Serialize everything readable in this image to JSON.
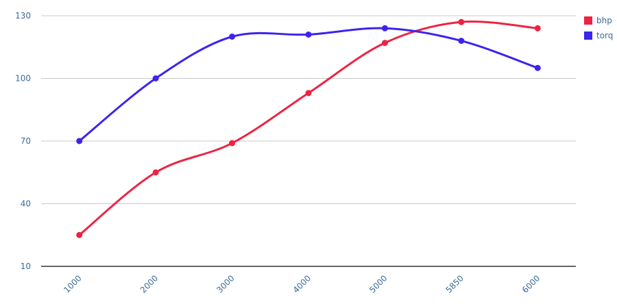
{
  "chart_data": {
    "type": "line",
    "categories": [
      "1000",
      "2000",
      "3000",
      "4000",
      "5000",
      "5850",
      "6000"
    ],
    "series": [
      {
        "name": "bhp",
        "color": "#ee2342",
        "values": [
          25,
          55,
          69,
          93,
          117,
          127,
          124
        ]
      },
      {
        "name": "torq",
        "color": "#3d23ee",
        "values": [
          70,
          100,
          120,
          121,
          124,
          118,
          105
        ]
      }
    ],
    "ylim": [
      10,
      130
    ],
    "yticks": [
      10,
      40,
      70,
      100,
      130
    ],
    "grid": true,
    "legend": "top-right"
  }
}
